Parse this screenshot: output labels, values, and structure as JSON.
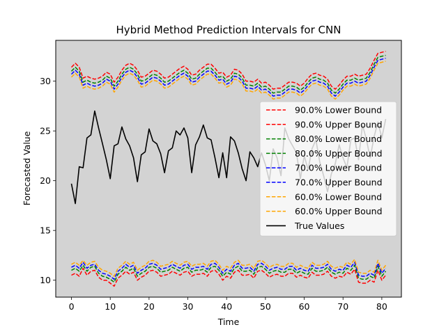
{
  "chart_data": {
    "type": "line",
    "title": "Hybrid Method Prediction Intervals for CNN",
    "xlabel": "Time",
    "ylabel": "Forecasted Value",
    "xlim": [
      -4.05,
      85.05
    ],
    "ylim": [
      8.3,
      34.1
    ],
    "xticks": [
      0,
      10,
      20,
      30,
      40,
      50,
      60,
      70,
      80
    ],
    "yticks": [
      10,
      15,
      20,
      25,
      30
    ],
    "background": "#d3d3d3",
    "legend_position": "center-right",
    "x": [
      0,
      1,
      2,
      3,
      4,
      5,
      6,
      7,
      8,
      9,
      10,
      11,
      12,
      13,
      14,
      15,
      16,
      17,
      18,
      19,
      20,
      21,
      22,
      23,
      24,
      25,
      26,
      27,
      28,
      29,
      30,
      31,
      32,
      33,
      34,
      35,
      36,
      37,
      38,
      39,
      40,
      41,
      42,
      43,
      44,
      45,
      46,
      47,
      48,
      49,
      50,
      51,
      52,
      53,
      54,
      55,
      56,
      57,
      58,
      59,
      60,
      61,
      62,
      63,
      64,
      65,
      66,
      67,
      68,
      69,
      70,
      71,
      72,
      73,
      74,
      75,
      76,
      77,
      78,
      79,
      80,
      81
    ],
    "series": [
      {
        "name": "90.0% Lower Bound",
        "color": "#ff0000",
        "dashed": true,
        "values": [
          10.5,
          10.7,
          10.4,
          11.2,
          10.5,
          10.9,
          11.0,
          10.3,
          10.0,
          10.0,
          9.7,
          9.4,
          10.2,
          10.5,
          10.9,
          10.6,
          10.8,
          10.0,
          10.3,
          10.5,
          10.9,
          11.0,
          10.8,
          10.4,
          10.5,
          10.6,
          10.9,
          10.7,
          10.5,
          10.8,
          10.9,
          10.4,
          10.6,
          10.6,
          10.7,
          10.4,
          10.9,
          11.0,
          10.6,
          10.0,
          10.4,
          10.2,
          10.8,
          11.0,
          10.5,
          10.5,
          10.6,
          10.2,
          10.9,
          11.0,
          10.7,
          10.3,
          10.5,
          10.6,
          10.4,
          10.4,
          10.7,
          10.7,
          10.3,
          10.5,
          10.3,
          10.2,
          10.8,
          10.5,
          10.5,
          10.6,
          10.9,
          10.4,
          10.2,
          10.4,
          10.3,
          10.8,
          10.6,
          11.1,
          9.8,
          9.7,
          9.7,
          10.0,
          9.8,
          11.0,
          10.0,
          10.5
        ]
      },
      {
        "name": "90.0% Upper Bound",
        "color": "#ff0000",
        "dashed": true,
        "values": [
          31.4,
          31.8,
          31.4,
          30.3,
          30.5,
          30.3,
          30.2,
          30.3,
          30.5,
          30.9,
          30.7,
          29.9,
          30.4,
          31.1,
          31.6,
          31.8,
          31.6,
          31.1,
          30.4,
          30.5,
          30.8,
          31.1,
          31.0,
          30.7,
          30.3,
          30.4,
          30.7,
          31.0,
          31.3,
          31.5,
          31.2,
          30.6,
          30.7,
          31.1,
          31.4,
          31.7,
          31.7,
          31.3,
          30.8,
          30.9,
          30.4,
          30.6,
          31.2,
          31.1,
          30.7,
          30.0,
          30.0,
          29.9,
          30.2,
          29.8,
          29.9,
          29.6,
          29.2,
          29.3,
          29.3,
          29.6,
          29.9,
          29.9,
          29.8,
          29.5,
          29.8,
          30.3,
          30.7,
          30.8,
          30.6,
          30.5,
          30.2,
          29.5,
          29.2,
          29.6,
          30.1,
          30.5,
          30.5,
          30.7,
          30.5,
          30.6,
          30.7,
          31.3,
          32.1,
          32.8,
          32.9,
          33.0
        ]
      },
      {
        "name": "80.0% Lower Bound",
        "color": "#008000",
        "dashed": true,
        "values": [
          11.0,
          11.2,
          10.9,
          11.5,
          10.9,
          11.3,
          11.4,
          10.7,
          10.4,
          10.3,
          10.1,
          9.8,
          10.6,
          10.9,
          11.3,
          11.0,
          11.2,
          10.4,
          10.7,
          10.9,
          11.3,
          11.4,
          11.2,
          10.8,
          10.9,
          11.0,
          11.3,
          11.1,
          10.9,
          11.2,
          11.3,
          10.8,
          11.0,
          11.0,
          11.1,
          10.8,
          11.3,
          11.4,
          11.0,
          10.4,
          10.8,
          10.6,
          11.2,
          11.4,
          10.9,
          10.9,
          11.0,
          10.6,
          11.3,
          11.4,
          11.1,
          10.7,
          10.9,
          11.0,
          10.8,
          10.8,
          11.1,
          11.1,
          10.7,
          10.9,
          10.7,
          10.6,
          11.2,
          10.9,
          10.9,
          11.0,
          11.3,
          10.8,
          10.6,
          10.8,
          10.7,
          11.2,
          11.0,
          11.5,
          10.2,
          10.1,
          10.1,
          10.4,
          10.2,
          11.4,
          10.4,
          10.9
        ]
      },
      {
        "name": "80.0% Upper Bound",
        "color": "#008000",
        "dashed": true,
        "values": [
          31.0,
          31.4,
          31.0,
          29.9,
          30.1,
          29.9,
          29.8,
          29.9,
          30.1,
          30.5,
          30.3,
          29.5,
          30.0,
          30.7,
          31.2,
          31.4,
          31.2,
          30.7,
          30.0,
          30.1,
          30.4,
          30.7,
          30.6,
          30.3,
          29.9,
          30.0,
          30.3,
          30.6,
          30.9,
          31.1,
          30.8,
          30.2,
          30.3,
          30.7,
          31.0,
          31.3,
          31.3,
          30.9,
          30.4,
          30.5,
          30.0,
          30.2,
          30.8,
          30.7,
          30.3,
          29.6,
          29.6,
          29.5,
          29.8,
          29.4,
          29.5,
          29.2,
          28.8,
          28.9,
          28.9,
          29.2,
          29.5,
          29.5,
          29.4,
          29.1,
          29.4,
          29.9,
          30.3,
          30.4,
          30.2,
          30.1,
          29.8,
          29.1,
          28.8,
          29.2,
          29.7,
          30.1,
          30.1,
          30.3,
          30.1,
          30.2,
          30.3,
          30.9,
          31.7,
          32.4,
          32.5,
          32.6
        ]
      },
      {
        "name": "70.0% Lower Bound",
        "color": "#0000ff",
        "dashed": true,
        "values": [
          11.3,
          11.5,
          11.2,
          11.8,
          11.2,
          11.5,
          11.6,
          11.0,
          10.7,
          10.6,
          10.4,
          10.1,
          10.9,
          11.2,
          11.6,
          11.3,
          11.5,
          10.7,
          11.0,
          11.2,
          11.6,
          11.7,
          11.5,
          11.1,
          11.2,
          11.3,
          11.6,
          11.4,
          11.2,
          11.5,
          11.6,
          11.1,
          11.3,
          11.3,
          11.4,
          11.1,
          11.6,
          11.7,
          11.3,
          10.7,
          11.1,
          10.9,
          11.5,
          11.7,
          11.2,
          11.2,
          11.3,
          10.9,
          11.6,
          11.7,
          11.4,
          11.0,
          11.2,
          11.3,
          11.1,
          11.1,
          11.4,
          11.4,
          11.0,
          11.2,
          11.0,
          10.9,
          11.5,
          11.2,
          11.2,
          11.3,
          11.6,
          11.1,
          10.9,
          11.1,
          11.0,
          11.5,
          11.3,
          11.8,
          10.5,
          10.4,
          10.4,
          10.7,
          10.5,
          11.7,
          10.7,
          11.2
        ]
      },
      {
        "name": "70.0% Upper Bound",
        "color": "#0000ff",
        "dashed": true,
        "values": [
          30.7,
          31.1,
          30.7,
          29.6,
          29.8,
          29.6,
          29.5,
          29.6,
          29.8,
          30.2,
          30.0,
          29.2,
          29.7,
          30.4,
          30.9,
          31.1,
          30.9,
          30.4,
          29.7,
          29.8,
          30.1,
          30.4,
          30.3,
          30.0,
          29.6,
          29.7,
          30.0,
          30.3,
          30.6,
          30.8,
          30.5,
          29.9,
          30.0,
          30.4,
          30.7,
          31.0,
          31.0,
          30.6,
          30.1,
          30.2,
          29.7,
          29.9,
          30.5,
          30.4,
          30.0,
          29.3,
          29.3,
          29.2,
          29.5,
          29.1,
          29.2,
          28.9,
          28.5,
          28.6,
          28.6,
          28.9,
          29.2,
          29.2,
          29.1,
          28.8,
          29.1,
          29.6,
          30.0,
          30.1,
          29.9,
          29.8,
          29.5,
          28.8,
          28.5,
          28.9,
          29.4,
          29.8,
          29.8,
          30.0,
          29.8,
          29.9,
          30.0,
          30.6,
          31.4,
          32.1,
          32.2,
          32.3
        ]
      },
      {
        "name": "60.0% Lower Bound",
        "color": "#ffa500",
        "dashed": true,
        "values": [
          11.6,
          11.8,
          11.5,
          12.0,
          11.5,
          11.8,
          11.9,
          11.3,
          11.0,
          10.9,
          10.7,
          10.4,
          11.2,
          11.5,
          11.9,
          11.6,
          11.8,
          11.0,
          11.3,
          11.5,
          11.9,
          12.0,
          11.8,
          11.4,
          11.5,
          11.6,
          11.9,
          11.7,
          11.5,
          11.8,
          11.9,
          11.4,
          11.6,
          11.6,
          11.7,
          11.4,
          11.9,
          12.0,
          11.6,
          11.0,
          11.4,
          11.2,
          11.8,
          12.0,
          11.5,
          11.5,
          11.6,
          11.2,
          11.9,
          12.0,
          11.7,
          11.3,
          11.5,
          11.6,
          11.4,
          11.4,
          11.7,
          11.7,
          11.3,
          11.5,
          11.3,
          11.2,
          11.8,
          11.5,
          11.5,
          11.6,
          11.9,
          11.4,
          11.2,
          11.4,
          11.3,
          11.8,
          11.6,
          12.1,
          10.8,
          10.7,
          10.7,
          11.0,
          10.8,
          12.0,
          11.0,
          11.5
        ]
      },
      {
        "name": "60.0% Upper Bound",
        "color": "#ffa500",
        "dashed": true,
        "values": [
          30.4,
          30.8,
          30.4,
          29.3,
          29.5,
          29.3,
          29.2,
          29.3,
          29.5,
          29.9,
          29.7,
          28.9,
          29.4,
          30.1,
          30.6,
          30.8,
          30.6,
          30.1,
          29.4,
          29.5,
          29.8,
          30.1,
          30.0,
          29.7,
          29.3,
          29.4,
          29.7,
          30.0,
          30.3,
          30.5,
          30.2,
          29.6,
          29.7,
          30.1,
          30.4,
          30.7,
          30.7,
          30.3,
          29.8,
          29.9,
          29.4,
          29.6,
          30.2,
          30.1,
          29.7,
          29.0,
          29.0,
          28.9,
          29.2,
          28.8,
          28.9,
          28.6,
          28.2,
          28.3,
          28.3,
          28.6,
          28.9,
          28.9,
          28.8,
          28.5,
          28.8,
          29.3,
          29.7,
          29.8,
          29.6,
          29.5,
          29.2,
          28.5,
          28.2,
          28.6,
          29.1,
          29.5,
          29.5,
          29.7,
          29.5,
          29.6,
          29.7,
          30.3,
          31.1,
          31.8,
          31.9,
          32.0
        ]
      },
      {
        "name": "True Values",
        "color": "#000000",
        "dashed": false,
        "values": [
          19.7,
          17.7,
          21.4,
          21.3,
          24.3,
          24.6,
          27.0,
          25.3,
          23.7,
          22.1,
          20.2,
          23.5,
          23.7,
          25.4,
          24.2,
          23.5,
          22.3,
          19.9,
          22.6,
          22.9,
          25.2,
          24.0,
          23.7,
          22.7,
          20.8,
          23.0,
          23.3,
          25.0,
          24.6,
          25.3,
          24.3,
          20.8,
          23.6,
          24.4,
          25.6,
          24.3,
          24.1,
          22.3,
          20.3,
          22.8,
          20.3,
          24.4,
          24.0,
          22.8,
          21.2,
          20.0,
          22.9,
          22.3,
          21.4,
          22.8,
          21.6,
          20.0,
          23.2,
          22.3,
          20.5,
          25.3,
          24.2,
          23.5,
          22.8,
          20.2,
          22.5,
          21.1,
          23.2,
          24.1,
          21.9,
          20.5,
          18.9,
          20.7,
          21.7,
          23.6,
          22.3,
          21.3,
          24.1,
          24.3,
          22.1,
          25.6,
          24.2,
          22.3,
          24.4,
          25.9,
          24.3,
          26.2
        ]
      }
    ]
  }
}
